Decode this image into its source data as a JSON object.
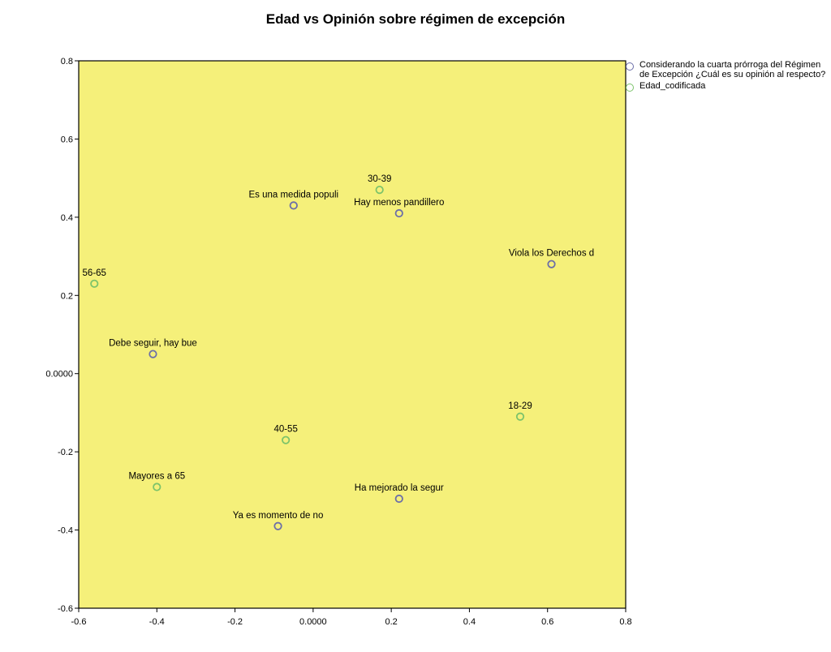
{
  "chart_data": {
    "type": "scatter",
    "title": "Edad vs Opinión sobre régimen de excepción",
    "xlabel": "",
    "ylabel": "",
    "xlim": [
      -0.6,
      0.8
    ],
    "ylim": [
      -0.6,
      0.8
    ],
    "x_ticks": [
      "-0.6",
      "-0.4",
      "-0.2",
      "0.0000",
      "0.2",
      "0.4",
      "0.6",
      "0.8"
    ],
    "y_ticks": [
      "-0.6",
      "-0.4",
      "-0.2",
      "0.0000",
      "0.2",
      "0.4",
      "0.6",
      "0.8"
    ],
    "plot_background": "#f5f07a",
    "grid": false,
    "legend_position": "right",
    "series": [
      {
        "name": "Considerando la cuarta prórroga del Régimen de Excepción ¿Cuál es su opinión al respecto?",
        "color": "#6b6ea8",
        "points": [
          {
            "label": "Es una medida populi",
            "x": -0.05,
            "y": 0.43
          },
          {
            "label": "Hay menos pandillero",
            "x": 0.22,
            "y": 0.41
          },
          {
            "label": "Viola los Derechos d",
            "x": 0.61,
            "y": 0.28
          },
          {
            "label": "Debe seguir, hay bue",
            "x": -0.41,
            "y": 0.05
          },
          {
            "label": "Ha mejorado la segur",
            "x": 0.22,
            "y": -0.32
          },
          {
            "label": "Ya es momento de no",
            "x": -0.09,
            "y": -0.39
          }
        ]
      },
      {
        "name": "Edad_codificada",
        "color": "#7cc36a",
        "points": [
          {
            "label": "30-39",
            "x": 0.17,
            "y": 0.47
          },
          {
            "label": "56-65",
            "x": -0.56,
            "y": 0.23
          },
          {
            "label": "18-29",
            "x": 0.53,
            "y": -0.11
          },
          {
            "label": "40-55",
            "x": -0.07,
            "y": -0.17
          },
          {
            "label": "Mayores a 65",
            "x": -0.4,
            "y": -0.29
          }
        ]
      }
    ]
  }
}
